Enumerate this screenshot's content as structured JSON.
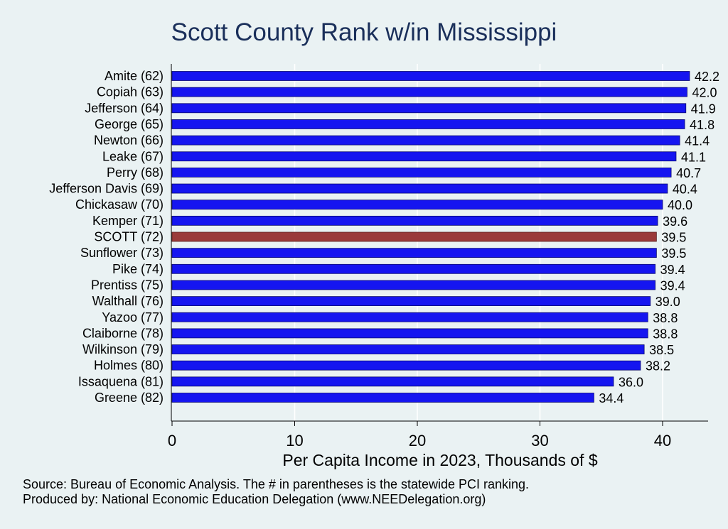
{
  "chart_data": {
    "type": "bar",
    "orientation": "horizontal",
    "title": "Scott County Rank w/in Mississippi",
    "xlabel": "Per Capita Income in 2023, Thousands of $",
    "ylabel": "",
    "xlim": [
      0,
      44
    ],
    "xticks": [
      0,
      10,
      20,
      30,
      40
    ],
    "grid": true,
    "categories": [
      "Amite (62)",
      "Copiah (63)",
      "Jefferson (64)",
      "George (65)",
      "Newton (66)",
      "Leake (67)",
      "Perry (68)",
      "Jefferson Davis (69)",
      "Chickasaw (70)",
      "Kemper (71)",
      "SCOTT (72)",
      "Sunflower (73)",
      "Pike (74)",
      "Prentiss (75)",
      "Walthall (76)",
      "Yazoo (77)",
      "Claiborne (78)",
      "Wilkinson (79)",
      "Holmes (80)",
      "Issaquena (81)",
      "Greene (82)"
    ],
    "values": [
      42.2,
      42.0,
      41.9,
      41.8,
      41.4,
      41.1,
      40.7,
      40.4,
      40.0,
      39.6,
      39.5,
      39.5,
      39.4,
      39.4,
      39.0,
      38.8,
      38.8,
      38.5,
      38.2,
      36.0,
      34.4
    ],
    "value_labels": [
      "42.2",
      "42.0",
      "41.9",
      "41.8",
      "41.4",
      "41.1",
      "40.7",
      "40.4",
      "40.0",
      "39.6",
      "39.5",
      "39.5",
      "39.4",
      "39.4",
      "39.0",
      "38.8",
      "38.8",
      "38.5",
      "38.2",
      "36.0",
      "34.4"
    ],
    "highlight_category": "SCOTT (72)",
    "colors": {
      "bar": "#1515f0",
      "highlight": "#9a3a3a",
      "background": "#eaf2f3",
      "grid": "#ffffff",
      "title": "#1a2f5a"
    }
  },
  "footer": {
    "source": "Source: Bureau of Economic Analysis. The # in parentheses is the statewide PCI ranking.",
    "produced": "Produced by: National Economic Education Delegation (www.NEEDelegation.org)"
  }
}
